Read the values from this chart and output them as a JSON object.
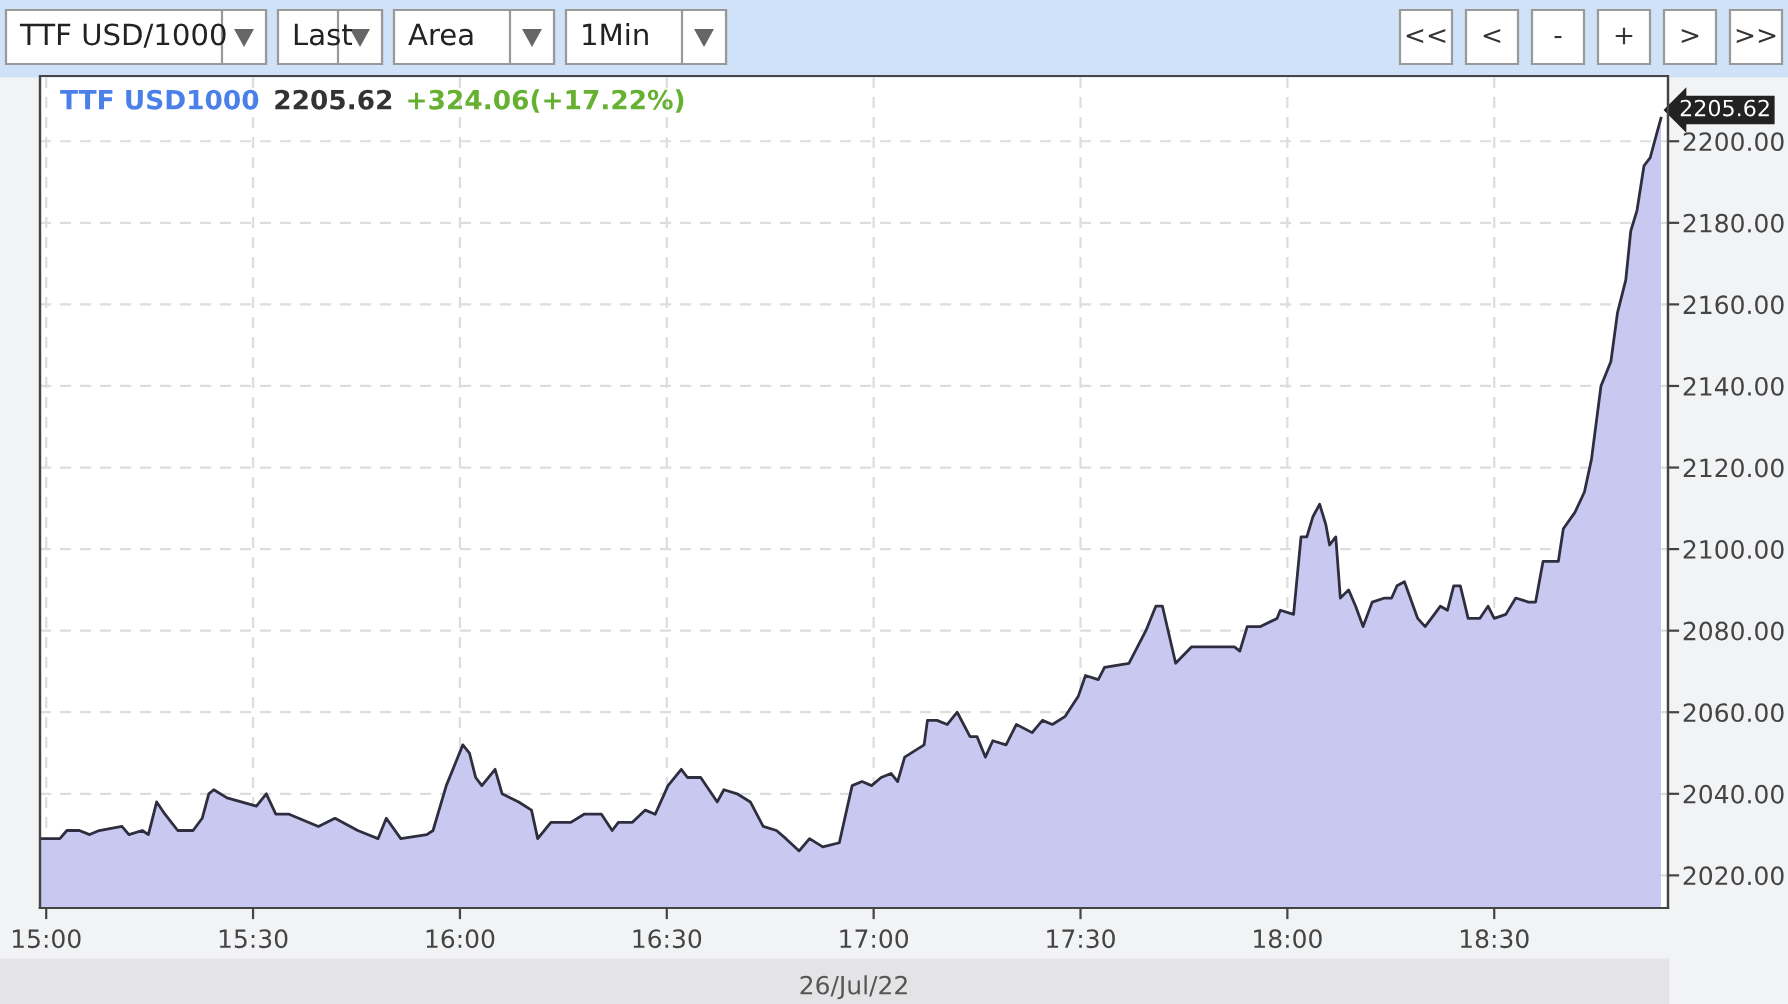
{
  "chart_data": {
    "type": "area",
    "title": "TTF USD1000",
    "xlabel": "26/Jul/22",
    "annotations": [
      "2205.62",
      "+324.06(+17.22%)",
      "TTF USD/1000",
      "Last",
      "Area",
      "1Min",
      "<<",
      "<",
      "-",
      "+",
      ">",
      ">>",
      "2205.62"
    ],
    "x": [
      14.985,
      15.033,
      15.05,
      15.08,
      15.105,
      15.128,
      15.183,
      15.2,
      15.232,
      15.247,
      15.267,
      15.287,
      15.318,
      15.355,
      15.377,
      15.393,
      15.405,
      15.437,
      15.508,
      15.532,
      15.555,
      15.587,
      15.658,
      15.698,
      15.753,
      15.777,
      15.802,
      15.822,
      15.857,
      15.92,
      15.935,
      15.967,
      16.007,
      16.023,
      16.038,
      16.053,
      16.085,
      16.102,
      16.142,
      16.173,
      16.188,
      16.22,
      16.268,
      16.3,
      16.342,
      16.368,
      16.383,
      16.417,
      16.448,
      16.472,
      16.503,
      16.535,
      16.55,
      16.582,
      16.622,
      16.638,
      16.67,
      16.702,
      16.733,
      16.765,
      16.788,
      16.82,
      16.845,
      16.877,
      16.917,
      16.948,
      16.972,
      16.995,
      17.018,
      17.042,
      17.058,
      17.075,
      17.122,
      17.13,
      17.153,
      17.178,
      17.202,
      17.233,
      17.25,
      17.27,
      17.288,
      17.32,
      17.345,
      17.383,
      17.408,
      17.432,
      17.463,
      17.495,
      17.512,
      17.543,
      17.558,
      17.617,
      17.658,
      17.682,
      17.698,
      17.73,
      17.768,
      17.808,
      17.872,
      17.885,
      17.903,
      17.935,
      17.975,
      17.983,
      18.015,
      18.033,
      18.047,
      18.062,
      18.078,
      18.093,
      18.102,
      18.117,
      18.128,
      18.148,
      18.165,
      18.183,
      18.205,
      18.235,
      18.252,
      18.265,
      18.283,
      18.315,
      18.333,
      18.37,
      18.387,
      18.402,
      18.418,
      18.437,
      18.465,
      18.485,
      18.5,
      18.528,
      18.552,
      18.583,
      18.6,
      18.618,
      18.64,
      18.655,
      18.667,
      18.695,
      18.718,
      18.735,
      18.758,
      18.782,
      18.798,
      18.818,
      18.83,
      18.845,
      18.862,
      18.877,
      18.893,
      18.903
    ],
    "series": [
      {
        "color": "#c8c8f0",
        "axis": "y2",
        "values": [
          2029,
          2029,
          2031,
          2031,
          2030,
          2031,
          2032,
          2030,
          2031,
          2030,
          2038,
          2035,
          2031,
          2031,
          2034,
          2040,
          2041,
          2039,
          2037,
          2040,
          2035,
          2035,
          2032,
          2034,
          2031,
          2030,
          2029,
          2034,
          2029,
          2030,
          2031,
          2042,
          2052,
          2050,
          2044,
          2042,
          2046,
          2040,
          2038,
          2036,
          2029,
          2033,
          2033,
          2035,
          2035,
          2031,
          2033,
          2033,
          2036,
          2035,
          2042,
          2046,
          2044,
          2044,
          2038,
          2041,
          2040,
          2038,
          2032,
          2031,
          2029,
          2026,
          2029,
          2027,
          2028,
          2042,
          2043,
          2042,
          2044,
          2045,
          2043,
          2049,
          2052,
          2058,
          2058,
          2057,
          2060,
          2054,
          2054,
          2049,
          2053,
          2052,
          2057,
          2055,
          2058,
          2057,
          2059,
          2064,
          2069,
          2068,
          2071,
          2072,
          2080,
          2086,
          2086,
          2072,
          2076,
          2076,
          2076,
          2075,
          2081,
          2081,
          2083,
          2085,
          2084,
          2103,
          2103,
          2108,
          2111,
          2106,
          2101,
          2103,
          2088,
          2090,
          2086,
          2081,
          2087,
          2088,
          2088,
          2091,
          2092,
          2083,
          2081,
          2086,
          2085,
          2091,
          2091,
          2083,
          2083,
          2086,
          2083,
          2084,
          2088,
          2087,
          2087,
          2097,
          2097,
          2097,
          2105,
          2109,
          2114,
          2122,
          2140,
          2146,
          2158,
          2166,
          2178,
          2183,
          2194,
          2196,
          2202,
          2205.62
        ]
      }
    ],
    "xlim": [
      14.985,
      18.92
    ],
    "xticks": [
      {
        "value": 15,
        "label": "15:00"
      },
      {
        "value": 15.5,
        "label": "15:30"
      },
      {
        "value": 16,
        "label": "16:00"
      },
      {
        "value": 16.5,
        "label": "16:30"
      },
      {
        "value": 17,
        "label": "17:00"
      },
      {
        "value": 17.5,
        "label": "17:30"
      },
      {
        "value": 18,
        "label": "18:00"
      },
      {
        "value": 18.5,
        "label": "18:30"
      }
    ],
    "y2lim": [
      2012,
      2216
    ],
    "y2ticks": [
      {
        "value": 2020,
        "label": "2020.00"
      },
      {
        "value": 2040,
        "label": "2040.00"
      },
      {
        "value": 2060,
        "label": "2060.00"
      },
      {
        "value": 2080,
        "label": "2080.00"
      },
      {
        "value": 2100,
        "label": "2100.00"
      },
      {
        "value": 2120,
        "label": "2120.00"
      },
      {
        "value": 2140,
        "label": "2140.00"
      },
      {
        "value": 2160,
        "label": "2160.00"
      },
      {
        "value": 2180,
        "label": "2180.00"
      },
      {
        "value": 2200,
        "label": "2200.00"
      }
    ],
    "grid": true
  }
}
